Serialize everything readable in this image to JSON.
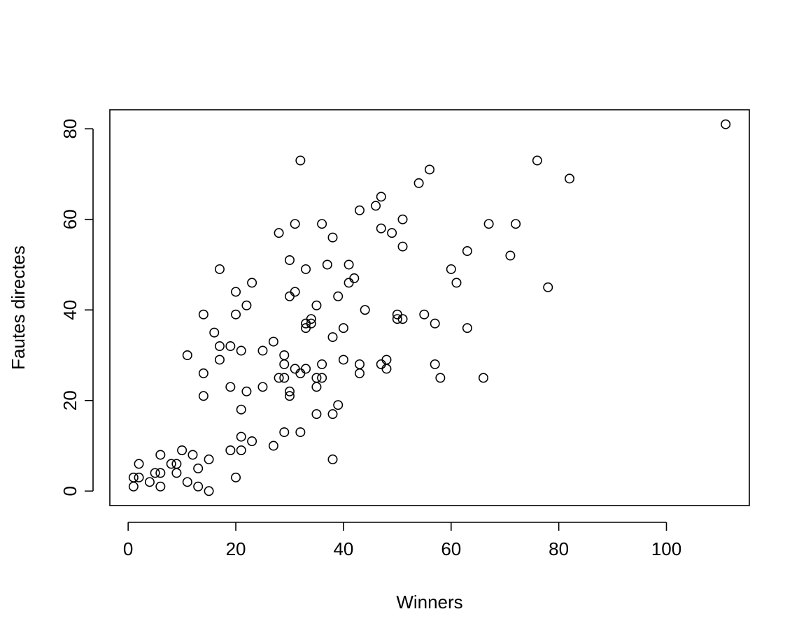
{
  "chart_data": {
    "type": "scatter",
    "title": "",
    "xlabel": "Winners",
    "ylabel": "Fautes directes",
    "xlim": [
      -3.4,
      115.4
    ],
    "ylim": [
      -3.2,
      84.2
    ],
    "xticks": [
      0,
      20,
      40,
      60,
      80,
      100
    ],
    "yticks": [
      0,
      20,
      40,
      60,
      80
    ],
    "xtick_labels": [
      "0",
      "20",
      "40",
      "60",
      "80",
      "100"
    ],
    "ytick_labels": [
      "0",
      "20",
      "40",
      "60",
      "80"
    ],
    "marker": "open-circle",
    "colors": {
      "points": "#000000",
      "axes": "#000000",
      "background": "#ffffff"
    },
    "series": [
      {
        "name": "points",
        "x": [
          111,
          32,
          56,
          76,
          54,
          82,
          47,
          46,
          43,
          51,
          31,
          36,
          67,
          72,
          47,
          28,
          49,
          38,
          51,
          63,
          71,
          30,
          17,
          33,
          37,
          41,
          60,
          42,
          23,
          61,
          41,
          78,
          20,
          31,
          30,
          39,
          22,
          35,
          44,
          14,
          20,
          55,
          50,
          50,
          51,
          34,
          57,
          16,
          33,
          40,
          63,
          33,
          34,
          27,
          38,
          17,
          19,
          21,
          25,
          11,
          29,
          17,
          40,
          48,
          47,
          43,
          36,
          29,
          57,
          31,
          33,
          48,
          14,
          32,
          28,
          29,
          35,
          43,
          36,
          58,
          66,
          19,
          35,
          25,
          22,
          30,
          30,
          14,
          39,
          21,
          35,
          38,
          29,
          32,
          21,
          23,
          27,
          10,
          19,
          21,
          12,
          2,
          6,
          38,
          15,
          8,
          9,
          13,
          1,
          5,
          6,
          9,
          2,
          20,
          4,
          11,
          1,
          6,
          13,
          15
        ],
        "y": [
          81,
          73,
          71,
          73,
          68,
          69,
          65,
          63,
          62,
          60,
          59,
          59,
          59,
          59,
          58,
          57,
          57,
          56,
          54,
          53,
          52,
          51,
          49,
          49,
          50,
          50,
          49,
          47,
          46,
          46,
          46,
          45,
          44,
          44,
          43,
          43,
          41,
          41,
          40,
          39,
          39,
          39,
          39,
          38,
          38,
          38,
          37,
          35,
          37,
          36,
          36,
          36,
          37,
          33,
          34,
          32,
          32,
          31,
          31,
          30,
          30,
          29,
          29,
          29,
          28,
          28,
          28,
          28,
          28,
          27,
          27,
          27,
          26,
          26,
          25,
          25,
          25,
          26,
          25,
          25,
          25,
          23,
          23,
          23,
          22,
          22,
          21,
          21,
          19,
          18,
          17,
          17,
          13,
          13,
          12,
          11,
          10,
          9,
          9,
          9,
          8,
          6,
          8,
          7,
          7,
          6,
          6,
          5,
          3,
          4,
          4,
          4,
          3,
          3,
          2,
          2,
          1,
          1,
          1,
          0
        ]
      }
    ]
  }
}
